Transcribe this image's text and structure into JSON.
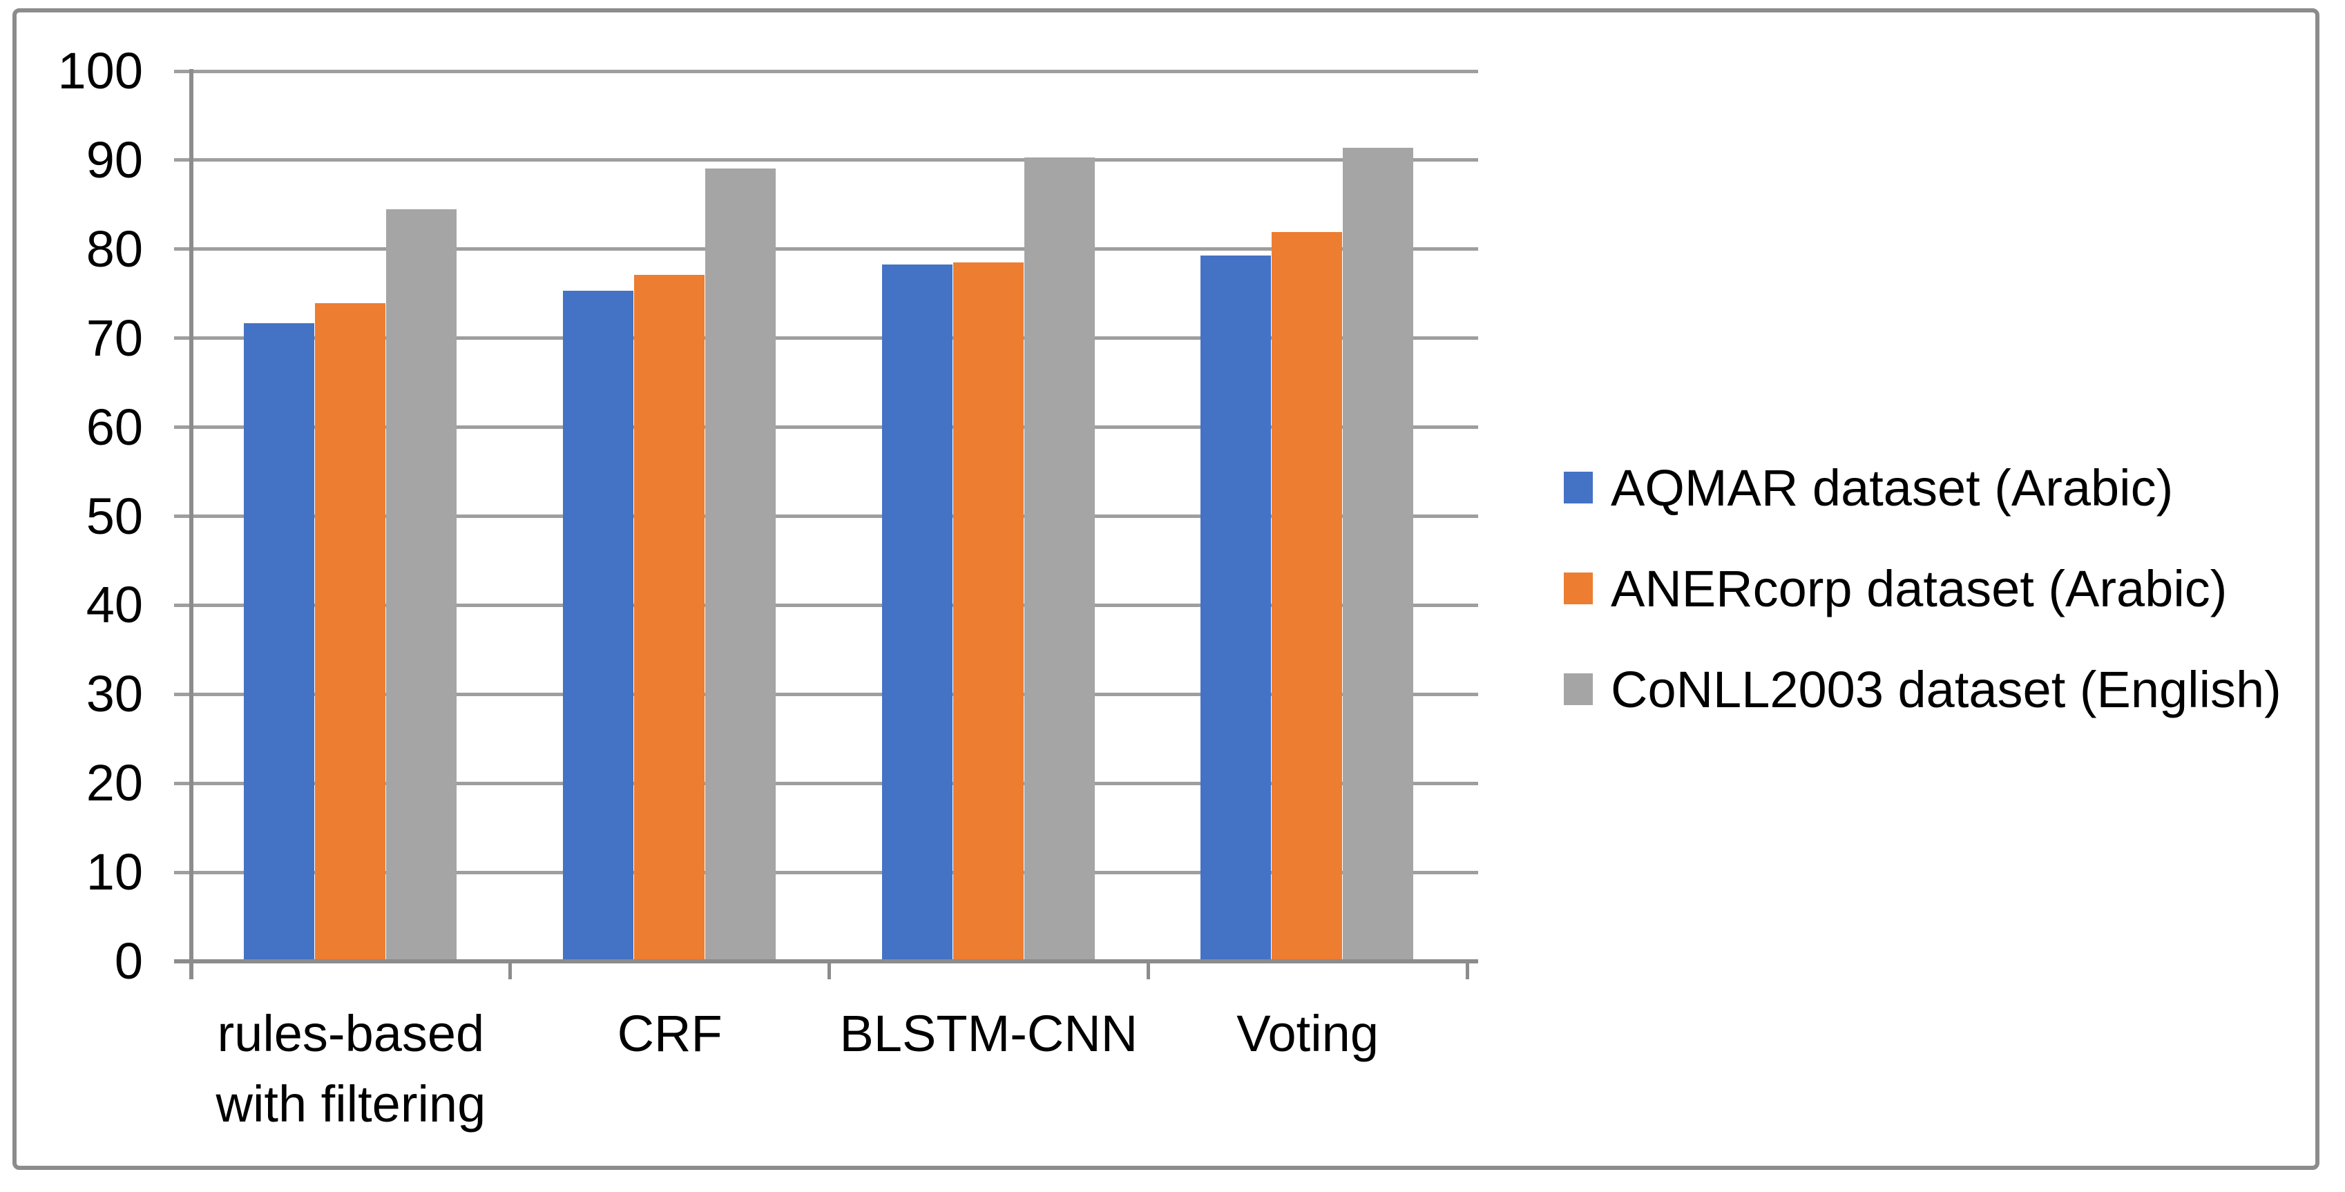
{
  "chart_data": {
    "type": "bar",
    "title": "",
    "xlabel": "",
    "ylabel": "",
    "categories": [
      "rules-based\nwith filtering",
      "CRF",
      "BLSTM-CNN",
      "Voting"
    ],
    "series": [
      {
        "name": "AQMAR dataset (Arabic)",
        "color": "#4472C4",
        "values": [
          71.7,
          75.3,
          78.3,
          79.3
        ]
      },
      {
        "name": "ANERcorp dataset (Arabic)",
        "color": "#ED7D31",
        "values": [
          73.9,
          77.1,
          78.5,
          81.9
        ]
      },
      {
        "name": "CoNLL2003 dataset (English)",
        "color": "#A5A5A5",
        "values": [
          84.5,
          89.1,
          90.3,
          91.4
        ]
      }
    ],
    "ylim": [
      0,
      100
    ],
    "ytick_step": 10,
    "ytick_labels": [
      "0",
      "10",
      "20",
      "30",
      "40",
      "50",
      "60",
      "70",
      "80",
      "90",
      "100"
    ],
    "grid": true,
    "legend_position": "right"
  },
  "colors": {
    "background": "#FFFFFF",
    "border": "#8C8C8C",
    "axis": "#8C8C8C",
    "gridline": "#9E9E9E",
    "text": "#000000"
  }
}
